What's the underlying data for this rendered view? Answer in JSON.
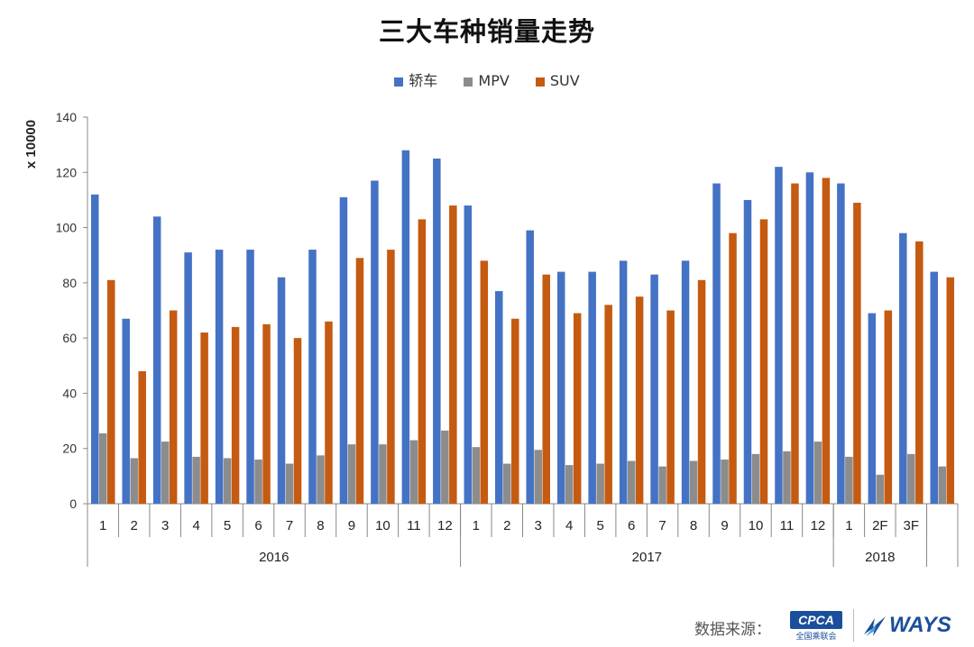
{
  "chart_data": {
    "type": "bar",
    "title": "三大车种销量走势",
    "xlabel": "",
    "ylabel": "x 10000",
    "ylim": [
      0,
      140
    ],
    "yticks": [
      0,
      20,
      40,
      60,
      80,
      100,
      120,
      140
    ],
    "grid": false,
    "legend_position": "top",
    "categories": [
      "1",
      "2",
      "3",
      "4",
      "5",
      "6",
      "7",
      "8",
      "9",
      "10",
      "11",
      "12",
      "1",
      "2",
      "3",
      "4",
      "5",
      "6",
      "7",
      "8",
      "9",
      "10",
      "11",
      "12",
      "1",
      "2F",
      "3F",
      ""
    ],
    "groups": [
      {
        "label": "2016",
        "count": 12
      },
      {
        "label": "2017",
        "count": 12
      },
      {
        "label": "2018",
        "count": 3
      },
      {
        "label": "",
        "count": 1
      }
    ],
    "series": [
      {
        "name": "轿车",
        "color": "#4472c4",
        "values": [
          112,
          67,
          104,
          91,
          92,
          92,
          82,
          92,
          111,
          117,
          128,
          125,
          108,
          77,
          99,
          84,
          84,
          88,
          83,
          88,
          116,
          110,
          122,
          120,
          116,
          69,
          98,
          84
        ]
      },
      {
        "name": "MPV",
        "color": "#8c8c8c",
        "values": [
          25.5,
          16.5,
          22.5,
          17,
          16.5,
          16,
          14.5,
          17.5,
          21.5,
          21.5,
          23,
          26.5,
          20.5,
          14.5,
          19.5,
          14,
          14.5,
          15.5,
          13.5,
          15.5,
          16,
          18,
          19,
          22.5,
          17,
          10.5,
          18,
          13.5
        ]
      },
      {
        "name": "SUV",
        "color": "#c55a11",
        "values": [
          81,
          48,
          70,
          62,
          64,
          65,
          60,
          66,
          89,
          92,
          103,
          108,
          88,
          67,
          83,
          69,
          72,
          75,
          70,
          81,
          98,
          103,
          116,
          118,
          109,
          70,
          95,
          82
        ]
      }
    ]
  },
  "footer": {
    "source_label": "数据来源：",
    "cpca_logo_text": "CPCA",
    "cpca_logo_sub": "全国乘联会",
    "ways_logo_text": "WAYS"
  }
}
